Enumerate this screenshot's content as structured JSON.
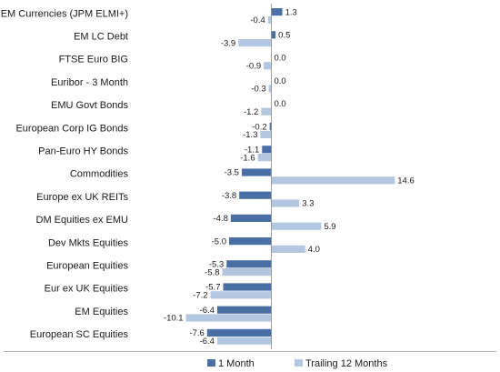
{
  "chart_data": {
    "type": "bar",
    "orientation": "horizontal",
    "categories": [
      "EM Currencies (JPM ELMI+)",
      "EM LC Debt",
      "FTSE Euro BIG",
      "Euribor - 3 Month",
      "EMU Govt Bonds",
      "European Corp IG Bonds",
      "Pan-Euro HY Bonds",
      "Commodities",
      "Europe ex UK REITs",
      "DM Equities ex EMU",
      "Dev Mkts Equities",
      "European Equities",
      "Eur ex UK Equities",
      "EM Equities",
      "European SC Equities"
    ],
    "series": [
      {
        "name": "1 Month",
        "color": "#4a6fa5",
        "values": [
          1.3,
          0.5,
          0.0,
          0.0,
          0.0,
          -0.2,
          -1.1,
          -3.5,
          -3.8,
          -4.8,
          -5.0,
          -5.3,
          -5.7,
          -6.4,
          -7.6
        ],
        "labels": [
          "1.3",
          "0.5",
          "0.0",
          "0.0",
          "0.0",
          "-0.2",
          "-1.1",
          "-3.5",
          "-3.8",
          "-4.8",
          "-5.0",
          "-5.3",
          "-5.7",
          "-6.4",
          "-7.6"
        ]
      },
      {
        "name": "Trailing 12 Months",
        "color": "#b3c7e0",
        "values": [
          -0.4,
          -3.9,
          -0.9,
          -0.3,
          -1.2,
          -1.3,
          -1.6,
          14.6,
          3.3,
          5.9,
          4.0,
          -5.8,
          -7.2,
          -10.1,
          -6.4
        ],
        "labels": [
          "-0.4",
          "-3.9",
          "-0.9",
          "-0.3",
          "-1.2",
          "-1.3",
          "-1.6",
          "14.6",
          "3.3",
          "5.9",
          "4.0",
          "-5.8",
          "-7.2",
          "-10.1",
          "-6.4"
        ]
      }
    ],
    "legend_position": "bottom",
    "grid": false
  }
}
